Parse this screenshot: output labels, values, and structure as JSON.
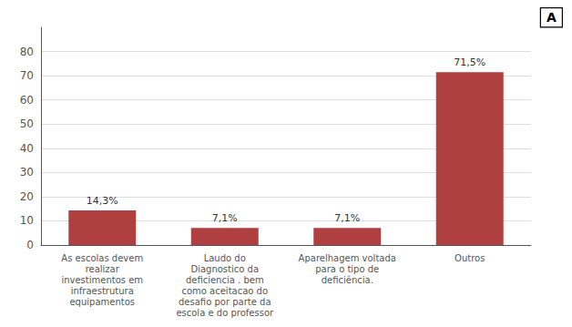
{
  "chart_data": {
    "type": "bar",
    "categories": [
      "As escolas devem\nrealizar\ninvestimentos em\ninfraestrutura\nequipamentos",
      "Laudo do\nDiagnostico da\ndeficiencia . bem\ncomo aceitacao do\ndesafio por parte da\nescola e do professor",
      "Aparelhagem voltada\npara o tipo de\ndeficiência.",
      "Outros"
    ],
    "values": [
      14.3,
      7.1,
      7.1,
      71.5
    ],
    "value_labels": [
      "14,3%",
      "7,1%",
      "7,1%",
      "71,5%"
    ],
    "data_labels": true,
    "color": "#b04040",
    "ylim": [
      0,
      90
    ],
    "yticks": [
      0,
      10,
      20,
      30,
      40,
      50,
      60,
      70,
      80
    ],
    "grid": true,
    "annotations": [
      "A"
    ]
  }
}
